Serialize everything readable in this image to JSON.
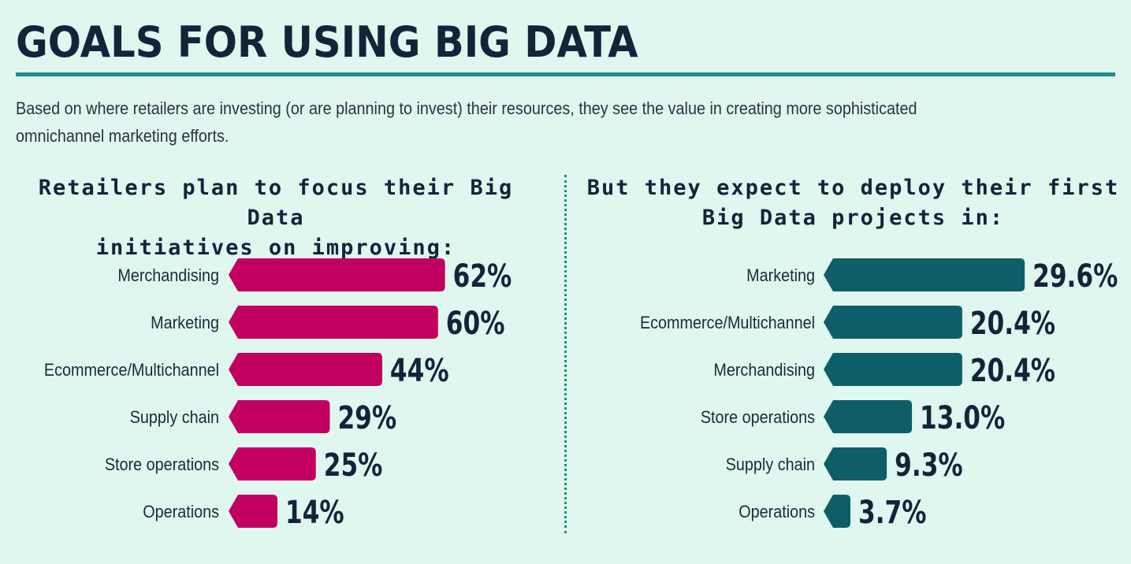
{
  "header": {
    "title": "GOALS FOR USING BIG DATA",
    "intro": "Based on where retailers are investing (or are planning to invest) their resources, they see the value in creating more sophisticated omnichannel marketing efforts."
  },
  "left_panel": {
    "heading_line1": "Retailers plan to focus their Big Data",
    "heading_line2": "initiatives on improving:"
  },
  "right_panel": {
    "heading_line1": "But they expect to deploy their first",
    "heading_line2": "Big Data projects in:"
  },
  "chart_data": [
    {
      "type": "bar",
      "orientation": "horizontal",
      "title": "Retailers plan to focus their Big Data initiatives on improving:",
      "categories": [
        "Merchandising",
        "Marketing",
        "Ecommerce/Multichannel",
        "Supply chain",
        "Store operations",
        "Operations"
      ],
      "values": [
        62,
        60,
        44,
        29,
        25,
        14
      ],
      "value_labels": [
        "62%",
        "60%",
        "44%",
        "29%",
        "25%",
        "14%"
      ],
      "unit": "%",
      "color": "#c2005f",
      "grid": false,
      "legend": "none"
    },
    {
      "type": "bar",
      "orientation": "horizontal",
      "title": "But they expect to deploy their first Big Data projects in:",
      "categories": [
        "Marketing",
        "Ecommerce/Multichannel",
        "Merchandising",
        "Store operations",
        "Supply chain",
        "Operations"
      ],
      "values": [
        29.6,
        20.4,
        20.4,
        13.0,
        9.3,
        3.7
      ],
      "value_labels": [
        "29.6%",
        "20.4%",
        "20.4%",
        "13.0%",
        "9.3%",
        "3.7%"
      ],
      "unit": "%",
      "color": "#0d5e69",
      "grid": false,
      "legend": "none"
    }
  ]
}
